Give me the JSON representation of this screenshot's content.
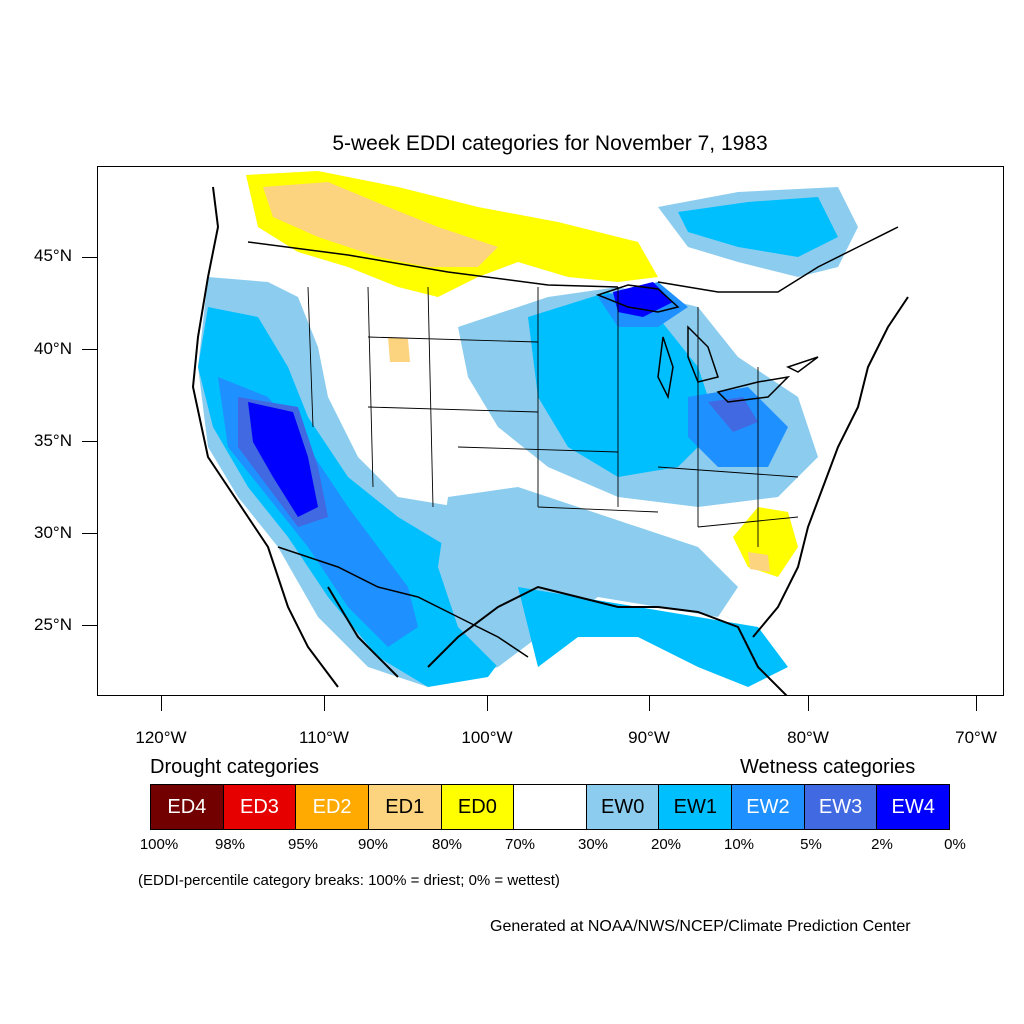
{
  "title": "5-week EDDI categories for November 7, 1983",
  "lat_labels": [
    "45°N",
    "40°N",
    "35°N",
    "30°N",
    "25°N"
  ],
  "lon_labels": [
    "120°W",
    "110°W",
    "100°W",
    "90°W",
    "80°W",
    "70°W"
  ],
  "legend": {
    "drought_heading": "Drought categories",
    "wetness_heading": "Wetness categories",
    "categories": [
      {
        "label": "ED4",
        "color": "#730000",
        "text_color": "#ffffff"
      },
      {
        "label": "ED3",
        "color": "#e60000",
        "text_color": "#ffffff"
      },
      {
        "label": "ED2",
        "color": "#ffaa00",
        "text_color": "#ffffff"
      },
      {
        "label": "ED1",
        "color": "#fcd37f",
        "text_color": "#000000"
      },
      {
        "label": "ED0",
        "color": "#ffff00",
        "text_color": "#000000"
      },
      {
        "label": "",
        "color": "#ffffff",
        "text_color": "#000000"
      },
      {
        "label": "EW0",
        "color": "#8ccdef",
        "text_color": "#000000"
      },
      {
        "label": "EW1",
        "color": "#00bfff",
        "text_color": "#000000"
      },
      {
        "label": "EW2",
        "color": "#1e90ff",
        "text_color": "#ffffff"
      },
      {
        "label": "EW3",
        "color": "#4169e1",
        "text_color": "#ffffff"
      },
      {
        "label": "EW4",
        "color": "#0000ff",
        "text_color": "#ffffff"
      }
    ],
    "percentile_breaks": [
      "100%",
      "98%",
      "95%",
      "90%",
      "80%",
      "70%",
      "30%",
      "20%",
      "10%",
      "5%",
      "2%",
      "0%"
    ]
  },
  "note": "(EDDI-percentile category breaks: 100% = driest; 0% = wettest)",
  "credit": "Generated at NOAA/NWS/NCEP/Climate Prediction Center"
}
